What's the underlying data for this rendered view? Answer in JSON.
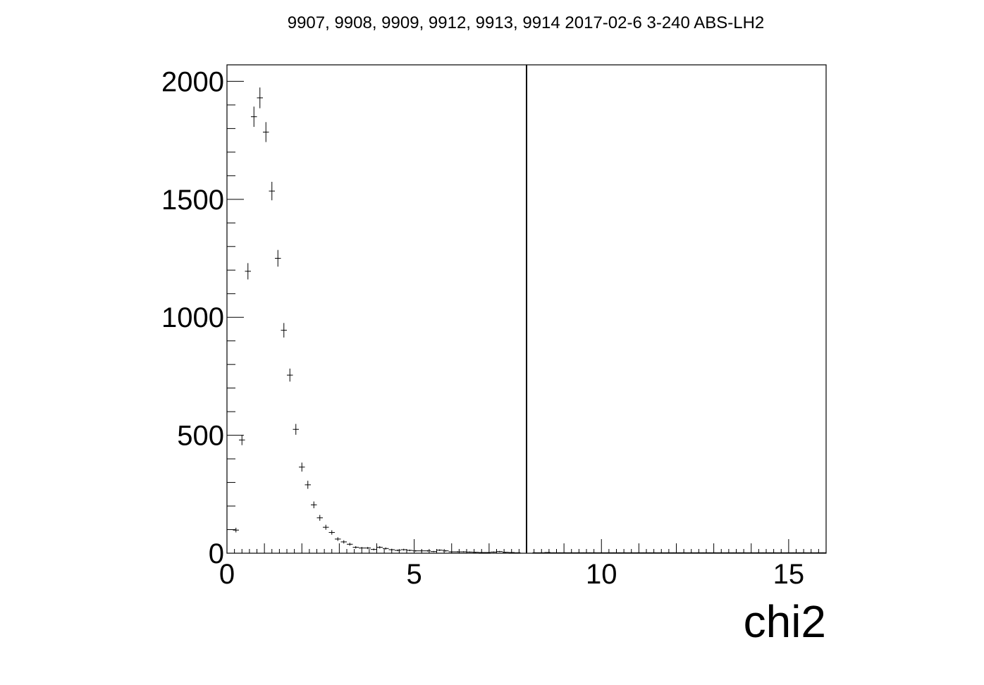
{
  "chart_data": {
    "type": "scatter",
    "title": "9907, 9908, 9909, 9912, 9913, 9914 2017-02-6 3-240 ABS-LH2",
    "xlabel": "chi2",
    "ylabel": "",
    "xlim": [
      0,
      16
    ],
    "ylim": [
      0,
      2070
    ],
    "x_ticks": [
      0,
      5,
      10,
      15
    ],
    "x_tick_labels": [
      "0",
      "5",
      "10",
      "15"
    ],
    "y_ticks": [
      0,
      500,
      1000,
      1500,
      2000
    ],
    "y_tick_labels": [
      "0",
      "500",
      "1000",
      "1500",
      "2000"
    ],
    "bin_width": 0.16,
    "grid": false,
    "legend": false,
    "vertical_line_x": 8,
    "series": [
      {
        "x": [
          0.24,
          0.4,
          0.56,
          0.72,
          0.88,
          1.04,
          1.2,
          1.36,
          1.52,
          1.68,
          1.84,
          2.0,
          2.16,
          2.32,
          2.48,
          2.64,
          2.8,
          2.96,
          3.12,
          3.28,
          3.44,
          3.6,
          3.76,
          3.92,
          4.08,
          4.24,
          4.4,
          4.56,
          4.72,
          4.88,
          5.04,
          5.2,
          5.36,
          5.52,
          5.68,
          5.84,
          6.0,
          6.16,
          6.32,
          6.48,
          6.64,
          6.8,
          6.96,
          7.12,
          7.28,
          7.44,
          7.6,
          7.76,
          8.24,
          8.4,
          8.56,
          8.72,
          8.88,
          9.04,
          9.2,
          9.36,
          9.52,
          9.68,
          9.84,
          10.0,
          10.16,
          10.32,
          10.48,
          10.64,
          10.8,
          10.96,
          11.12,
          11.28,
          11.44,
          11.6,
          11.76,
          11.92,
          12.08,
          12.24,
          12.4,
          12.56,
          12.72,
          12.88,
          13.04,
          13.2,
          13.36,
          13.52,
          13.68,
          13.84,
          14.0,
          14.16,
          14.32,
          14.48,
          14.64,
          14.8,
          14.96,
          15.12,
          15.28,
          15.44,
          15.6,
          15.76,
          15.92
        ],
        "values": [
          98,
          480,
          1195,
          1850,
          1930,
          1785,
          1535,
          1250,
          945,
          755,
          525,
          365,
          290,
          205,
          150,
          110,
          88,
          60,
          48,
          38,
          25,
          22,
          22,
          16,
          25,
          20,
          15,
          12,
          15,
          12,
          10,
          10,
          10,
          7,
          13,
          10,
          6,
          6,
          6,
          5,
          4,
          3,
          3,
          5,
          7,
          4,
          3,
          2,
          2,
          2,
          3,
          2,
          2,
          2,
          2,
          2,
          2,
          2,
          2,
          2,
          2,
          2,
          2,
          2,
          2,
          2,
          2,
          2,
          2,
          2,
          2,
          2,
          2,
          2,
          2,
          2,
          2,
          2,
          2,
          2,
          2,
          2,
          2,
          2,
          2,
          2,
          2,
          2,
          2,
          2,
          2,
          2,
          2,
          2,
          2,
          2,
          2
        ]
      }
    ]
  }
}
